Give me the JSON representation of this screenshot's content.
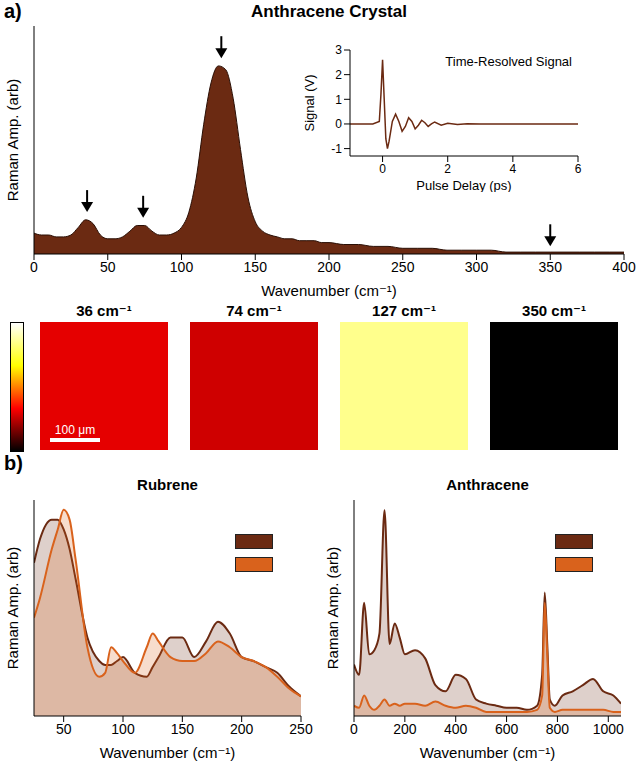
{
  "panel_labels": [
    "a)",
    "b)"
  ],
  "chart_data": [
    {
      "type": "area",
      "title": "Anthracene Crystal",
      "x_label": "Wavenumber (cm⁻¹)",
      "y_label": "Raman Amp. (arb)",
      "color": "#6b2a12",
      "x": [
        0,
        5,
        10,
        15,
        20,
        25,
        30,
        35,
        40,
        45,
        50,
        55,
        60,
        65,
        70,
        75,
        80,
        85,
        90,
        95,
        100,
        105,
        110,
        115,
        120,
        125,
        130,
        135,
        140,
        145,
        150,
        155,
        160,
        165,
        170,
        175,
        180,
        185,
        190,
        195,
        200,
        210,
        220,
        230,
        240,
        250,
        260,
        270,
        280,
        290,
        300,
        310,
        320,
        330,
        340,
        350,
        360,
        370,
        380,
        390,
        400
      ],
      "values": [
        0.11,
        0.1,
        0.1,
        0.09,
        0.09,
        0.1,
        0.14,
        0.18,
        0.16,
        0.1,
        0.08,
        0.08,
        0.09,
        0.12,
        0.15,
        0.15,
        0.12,
        0.1,
        0.1,
        0.11,
        0.14,
        0.22,
        0.4,
        0.68,
        0.9,
        0.99,
        0.97,
        0.82,
        0.55,
        0.3,
        0.17,
        0.12,
        0.1,
        0.09,
        0.08,
        0.08,
        0.07,
        0.07,
        0.07,
        0.06,
        0.06,
        0.05,
        0.05,
        0.04,
        0.04,
        0.03,
        0.03,
        0.03,
        0.02,
        0.02,
        0.02,
        0.02,
        0.01,
        0.01,
        0.01,
        0.01,
        0.01,
        0.01,
        0.01,
        0.01,
        0.01
      ],
      "xlim": [
        0,
        400
      ],
      "xticks": [
        0,
        50,
        100,
        150,
        200,
        250,
        300,
        350,
        400
      ],
      "ylim": [
        0,
        1.2
      ],
      "tick_labels": "x",
      "arrows": [
        {
          "x": 36,
          "y": 0.21
        },
        {
          "x": 74,
          "y": 0.18
        },
        {
          "x": 127,
          "y": 1.02
        },
        {
          "x": 350,
          "y": 0.03
        }
      ]
    },
    {
      "type": "line",
      "title": "Time-Resolved Signal",
      "x_label": "Pulse Delay (ps)",
      "y_label": "Signal (V)",
      "color": "#6b2a12",
      "x": [
        -1,
        -0.3,
        -0.1,
        -0.05,
        0,
        0.05,
        0.1,
        0.15,
        0.2,
        0.3,
        0.4,
        0.5,
        0.6,
        0.7,
        0.8,
        0.9,
        1.0,
        1.1,
        1.2,
        1.3,
        1.4,
        1.5,
        1.6,
        1.8,
        2.0,
        2.3,
        2.6,
        3,
        6
      ],
      "values": [
        0,
        0,
        0.1,
        1.2,
        2.6,
        1.0,
        -0.6,
        -1.0,
        -0.7,
        0.1,
        0.4,
        0.1,
        -0.3,
        -0.1,
        0.25,
        0.1,
        -0.2,
        -0.05,
        0.15,
        0.05,
        -0.1,
        0,
        0.08,
        -0.05,
        0.03,
        -0.02,
        0.01,
        0,
        0
      ],
      "xlim": [
        -1,
        6
      ],
      "xticks": [
        0,
        2,
        4,
        6
      ],
      "ylim": [
        -1.3,
        3
      ],
      "yticks": [
        -1,
        0,
        1,
        2,
        3
      ]
    },
    {
      "type": "area",
      "title": "Rubrene",
      "x_label": "Wavenumber (cm⁻¹)",
      "y_label": "Raman Amp. (arb)",
      "x": [
        25,
        30,
        40,
        45,
        50,
        55,
        60,
        70,
        80,
        85,
        90,
        95,
        100,
        110,
        120,
        125,
        130,
        140,
        150,
        160,
        170,
        180,
        190,
        200,
        210,
        220,
        230,
        240,
        250
      ],
      "series": [
        {
          "color": "#6b2a12",
          "values": [
            0.78,
            0.9,
            1.0,
            1.0,
            0.95,
            0.85,
            0.7,
            0.4,
            0.28,
            0.26,
            0.26,
            0.28,
            0.3,
            0.22,
            0.2,
            0.25,
            0.3,
            0.4,
            0.4,
            0.3,
            0.38,
            0.48,
            0.42,
            0.3,
            0.28,
            0.25,
            0.22,
            0.15,
            0.1
          ]
        },
        {
          "color": "#d9621c",
          "values": [
            0.5,
            0.6,
            0.85,
            0.95,
            1.05,
            1.0,
            0.8,
            0.35,
            0.2,
            0.22,
            0.35,
            0.32,
            0.28,
            0.22,
            0.35,
            0.42,
            0.38,
            0.3,
            0.28,
            0.28,
            0.32,
            0.38,
            0.35,
            0.3,
            0.28,
            0.25,
            0.2,
            0.14,
            0.1
          ]
        }
      ],
      "xlim": [
        25,
        250
      ],
      "xticks": [
        50,
        100,
        150,
        200,
        250
      ],
      "ylim": [
        0,
        1.1
      ],
      "tick_labels": "x",
      "legend": "upper right"
    },
    {
      "type": "area",
      "title": "Anthracene",
      "x_label": "Wavenumber (cm⁻¹)",
      "y_label": "Raman Amp. (arb)",
      "x": [
        0,
        20,
        40,
        60,
        80,
        100,
        120,
        140,
        160,
        180,
        200,
        240,
        280,
        320,
        360,
        400,
        440,
        480,
        520,
        560,
        600,
        640,
        680,
        720,
        740,
        750,
        760,
        770,
        790,
        820,
        860,
        900,
        940,
        980,
        1020,
        1050
      ],
      "series": [
        {
          "color": "#6b2a12",
          "values": [
            0.25,
            0.2,
            0.55,
            0.3,
            0.32,
            0.4,
            1.0,
            0.35,
            0.45,
            0.38,
            0.3,
            0.32,
            0.28,
            0.15,
            0.12,
            0.2,
            0.18,
            0.08,
            0.06,
            0.05,
            0.04,
            0.04,
            0.03,
            0.05,
            0.2,
            0.6,
            0.35,
            0.08,
            0.05,
            0.1,
            0.12,
            0.15,
            0.18,
            0.12,
            0.1,
            0.06
          ]
        },
        {
          "color": "#d9621c",
          "values": [
            0.05,
            0.04,
            0.1,
            0.05,
            0.03,
            0.05,
            0.08,
            0.05,
            0.06,
            0.05,
            0.06,
            0.06,
            0.05,
            0.07,
            0.05,
            0.04,
            0.05,
            0.04,
            0.02,
            0.02,
            0.02,
            0.02,
            0.02,
            0.03,
            0.1,
            0.55,
            0.3,
            0.04,
            0.02,
            0.03,
            0.03,
            0.03,
            0.03,
            0.03,
            0.02,
            0.02
          ]
        }
      ],
      "xlim": [
        0,
        1050
      ],
      "xticks": [
        0,
        200,
        400,
        600,
        800,
        1000
      ],
      "ylim": [
        0,
        1.05
      ],
      "tick_labels": "x",
      "legend": "upper right"
    }
  ],
  "maps": {
    "colorbar_range": [
      0,
      1
    ],
    "scale_bar": "100 μm",
    "images": [
      {
        "title": "36 cm⁻¹",
        "level": 0.3
      },
      {
        "title": "74 cm⁻¹",
        "level": 0.27
      },
      {
        "title": "127 cm⁻¹",
        "level": 0.85
      },
      {
        "title": "350 cm⁻¹",
        "level": 0
      }
    ]
  }
}
